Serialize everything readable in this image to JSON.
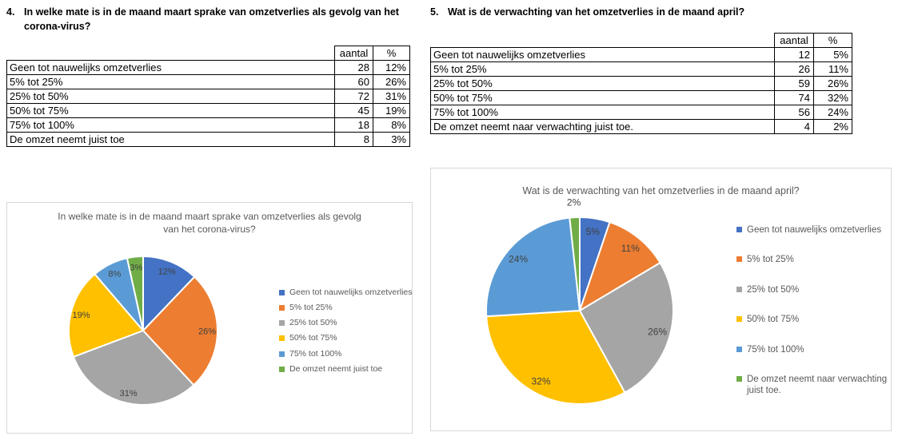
{
  "questions": [
    {
      "number": "4.",
      "title": "In welke mate is in de maand maart sprake van omzetverlies als gevolg van het corona-virus?",
      "table": {
        "headers": {
          "aantal": "aantal",
          "percent": "%"
        },
        "rows": [
          {
            "label": "Geen tot nauwelijks omzetverlies",
            "aantal": "28",
            "percent": "12%"
          },
          {
            "label": "5% tot 25%",
            "aantal": "60",
            "percent": "26%"
          },
          {
            "label": "25% tot 50%",
            "aantal": "72",
            "percent": "31%"
          },
          {
            "label": "50% tot 75%",
            "aantal": "45",
            "percent": "19%"
          },
          {
            "label": "75% tot 100%",
            "aantal": "18",
            "percent": "8%"
          },
          {
            "label": "De omzet neemt juist toe",
            "aantal": "8",
            "percent": "3%"
          }
        ]
      }
    },
    {
      "number": "5.",
      "title": "Wat is de verwachting van het omzetverlies in de maand april?",
      "table": {
        "headers": {
          "aantal": "aantal",
          "percent": "%"
        },
        "rows": [
          {
            "label": "Geen tot nauwelijks omzetverlies",
            "aantal": "12",
            "percent": "5%"
          },
          {
            "label": "5% tot 25%",
            "aantal": "26",
            "percent": "11%"
          },
          {
            "label": "25% tot 50%",
            "aantal": "59",
            "percent": "26%"
          },
          {
            "label": "50% tot 75%",
            "aantal": "74",
            "percent": "32%"
          },
          {
            "label": "75% tot 100%",
            "aantal": "56",
            "percent": "24%"
          },
          {
            "label": "De omzet neemt naar verwachting juist toe.",
            "aantal": "4",
            "percent": "2%"
          }
        ]
      }
    }
  ],
  "chart_data": [
    {
      "type": "pie",
      "title": "In welke mate is in de maand maart sprake van omzetverlies als gevolg van het corona-virus?",
      "categories": [
        "Geen tot nauwelijks omzetverlies",
        "5% tot 25%",
        "25% tot 50%",
        "50% tot 75%",
        "75% tot 100%",
        "De omzet neemt juist toe"
      ],
      "values": [
        28,
        60,
        72,
        45,
        18,
        8
      ],
      "labels_pct": [
        "12%",
        "26%",
        "31%",
        "19%",
        "8%",
        "3%"
      ],
      "colors": [
        "#4472C4",
        "#ED7D31",
        "#A5A5A5",
        "#FFC000",
        "#5B9BD5",
        "#70AD47"
      ],
      "legend_position": "right",
      "start_angle_deg": 0,
      "direction": "clockwise",
      "title_color": "#595959",
      "label_color": "#404040"
    },
    {
      "type": "pie",
      "title": "Wat is de verwachting van het omzetverlies in de maand april?",
      "categories": [
        "Geen tot nauwelijks omzetverlies",
        "5% tot 25%",
        "25% tot 50%",
        "50% tot 75%",
        "75% tot 100%",
        "De omzet neemt naar verwachting juist toe."
      ],
      "values": [
        12,
        26,
        59,
        74,
        56,
        4
      ],
      "labels_pct": [
        "5%",
        "11%",
        "26%",
        "32%",
        "24%",
        "2%"
      ],
      "colors": [
        "#4472C4",
        "#ED7D31",
        "#A5A5A5",
        "#FFC000",
        "#5B9BD5",
        "#70AD47"
      ],
      "legend_position": "right",
      "start_angle_deg": 0,
      "direction": "clockwise",
      "title_color": "#595959",
      "label_color": "#404040"
    }
  ]
}
